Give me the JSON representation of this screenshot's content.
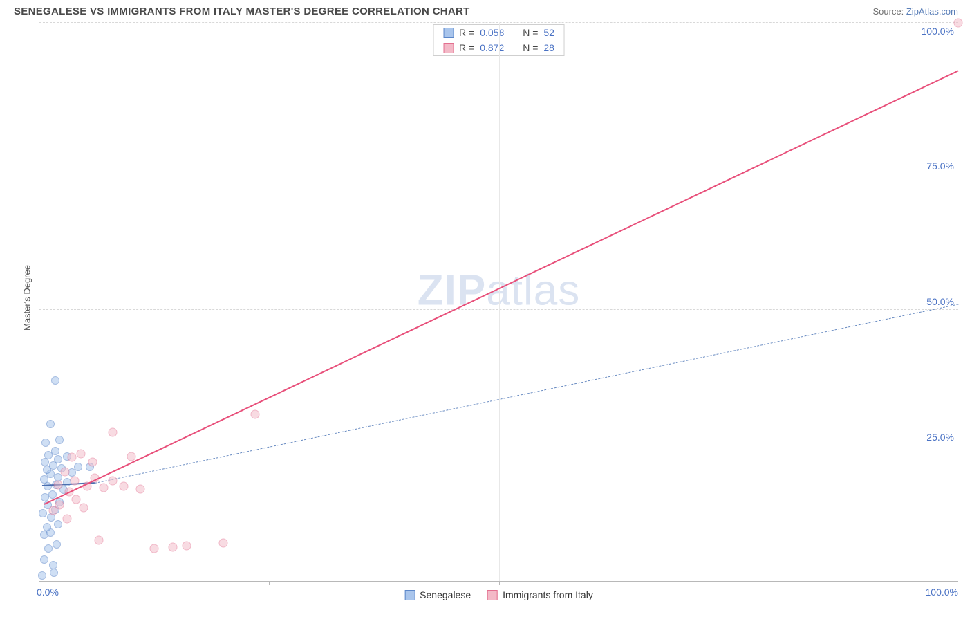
{
  "header": {
    "title": "SENEGALESE VS IMMIGRANTS FROM ITALY MASTER'S DEGREE CORRELATION CHART",
    "source_prefix": "Source: ",
    "source_link": "ZipAtlas.com"
  },
  "axes": {
    "y_label": "Master's Degree",
    "xlim": [
      0,
      100
    ],
    "ylim": [
      0,
      103
    ],
    "y_ticks": [
      {
        "value": 25,
        "label": "25.0%"
      },
      {
        "value": 50,
        "label": "50.0%"
      },
      {
        "value": 75,
        "label": "75.0%"
      },
      {
        "value": 100,
        "label": "100.0%"
      }
    ],
    "y_gridlines": [
      25,
      50,
      75,
      100,
      103
    ],
    "x_tick_corners": {
      "left": "0.0%",
      "right": "100.0%"
    },
    "x_ticks_at": [
      25,
      50,
      75
    ],
    "x_grid_at": [
      50
    ],
    "grid_color": "#d8d8d8",
    "axis_color": "#b8b8b8",
    "tick_label_color": "#4a72c4"
  },
  "watermark": {
    "zip": "ZIP",
    "atlas": "atlas"
  },
  "series": [
    {
      "key": "senegalese",
      "label": "Senegalese",
      "fill": "#a9c5ec",
      "stroke": "#5c87c9",
      "fill_opacity": 0.55,
      "marker_size": 12,
      "trend": {
        "x1": 0.3,
        "y1": 17.5,
        "x2": 6,
        "y2": 18.0,
        "width": 2.5,
        "dash": "none",
        "color": "#4a6fb0"
      },
      "trend_ext": {
        "x1": 6,
        "y1": 18.0,
        "x2": 100,
        "y2": 51.0,
        "width": 1.3,
        "dash": "6,5",
        "color": "#6a8cc2"
      },
      "stats": {
        "r_label": "R =",
        "r": "0.058",
        "n_label": "N =",
        "n": "52"
      },
      "points": [
        {
          "x": 0.3,
          "y": 1.0
        },
        {
          "x": 1.6,
          "y": 1.5
        },
        {
          "x": 1.5,
          "y": 3.0
        },
        {
          "x": 0.5,
          "y": 4.0
        },
        {
          "x": 1.0,
          "y": 6.0
        },
        {
          "x": 1.9,
          "y": 6.8
        },
        {
          "x": 0.5,
          "y": 8.5
        },
        {
          "x": 1.2,
          "y": 9.0
        },
        {
          "x": 0.8,
          "y": 10.0
        },
        {
          "x": 2.0,
          "y": 10.5
        },
        {
          "x": 1.3,
          "y": 11.8
        },
        {
          "x": 0.4,
          "y": 12.5
        },
        {
          "x": 1.7,
          "y": 13.2
        },
        {
          "x": 0.9,
          "y": 14.0
        },
        {
          "x": 2.2,
          "y": 14.5
        },
        {
          "x": 0.6,
          "y": 15.5
        },
        {
          "x": 1.4,
          "y": 16.0
        },
        {
          "x": 2.6,
          "y": 16.8
        },
        {
          "x": 0.9,
          "y": 17.5
        },
        {
          "x": 1.8,
          "y": 17.8
        },
        {
          "x": 3.0,
          "y": 18.2
        },
        {
          "x": 0.5,
          "y": 18.8
        },
        {
          "x": 2.0,
          "y": 19.2
        },
        {
          "x": 1.2,
          "y": 19.8
        },
        {
          "x": 3.5,
          "y": 20.0
        },
        {
          "x": 0.8,
          "y": 20.5
        },
        {
          "x": 2.4,
          "y": 20.8
        },
        {
          "x": 1.5,
          "y": 21.3
        },
        {
          "x": 4.2,
          "y": 21.0
        },
        {
          "x": 5.5,
          "y": 21.0
        },
        {
          "x": 0.6,
          "y": 22.0
        },
        {
          "x": 2.0,
          "y": 22.5
        },
        {
          "x": 1.0,
          "y": 23.2
        },
        {
          "x": 3.0,
          "y": 23.0
        },
        {
          "x": 1.7,
          "y": 24.0
        },
        {
          "x": 0.7,
          "y": 25.5
        },
        {
          "x": 2.2,
          "y": 26.0
        },
        {
          "x": 1.2,
          "y": 29.0
        },
        {
          "x": 1.7,
          "y": 37.0
        }
      ]
    },
    {
      "key": "italy",
      "label": "Immigrants from Italy",
      "fill": "#f3b9c7",
      "stroke": "#e36f8f",
      "fill_opacity": 0.5,
      "marker_size": 13,
      "trend": {
        "x1": 0.5,
        "y1": 14.0,
        "x2": 100,
        "y2": 94.0,
        "width": 2.5,
        "dash": "none",
        "color": "#e84f7a"
      },
      "stats": {
        "r_label": "R =",
        "r": "0.872",
        "n_label": "N =",
        "n": "28"
      },
      "points": [
        {
          "x": 1.5,
          "y": 13.0
        },
        {
          "x": 2.2,
          "y": 14.0
        },
        {
          "x": 3.0,
          "y": 11.5
        },
        {
          "x": 3.2,
          "y": 16.5
        },
        {
          "x": 2.0,
          "y": 17.8
        },
        {
          "x": 4.0,
          "y": 15.0
        },
        {
          "x": 3.8,
          "y": 18.5
        },
        {
          "x": 4.8,
          "y": 13.5
        },
        {
          "x": 2.8,
          "y": 20.2
        },
        {
          "x": 5.2,
          "y": 17.5
        },
        {
          "x": 3.5,
          "y": 22.8
        },
        {
          "x": 6.0,
          "y": 19.0
        },
        {
          "x": 4.5,
          "y": 23.5
        },
        {
          "x": 7.0,
          "y": 17.2
        },
        {
          "x": 5.8,
          "y": 22.0
        },
        {
          "x": 8.0,
          "y": 18.5
        },
        {
          "x": 6.5,
          "y": 7.5
        },
        {
          "x": 9.2,
          "y": 17.5
        },
        {
          "x": 8.0,
          "y": 27.5
        },
        {
          "x": 11.0,
          "y": 17.0
        },
        {
          "x": 10.0,
          "y": 23.0
        },
        {
          "x": 12.5,
          "y": 6.0
        },
        {
          "x": 14.5,
          "y": 6.3
        },
        {
          "x": 16.0,
          "y": 6.5
        },
        {
          "x": 20.0,
          "y": 7.0
        },
        {
          "x": 23.5,
          "y": 30.8
        },
        {
          "x": 100.0,
          "y": 103.0
        }
      ]
    }
  ],
  "legend_bottom": [
    {
      "swatch_fill": "#a9c5ec",
      "swatch_stroke": "#5c87c9",
      "label": "Senegalese"
    },
    {
      "swatch_fill": "#f3b9c7",
      "swatch_stroke": "#e36f8f",
      "label": "Immigrants from Italy"
    }
  ],
  "chart_style": {
    "bg": "#ffffff",
    "legend_border": "#cfcfcf",
    "text_color": "#555",
    "stat_label_color": "#444",
    "stat_value_color": "#4a72c4"
  }
}
